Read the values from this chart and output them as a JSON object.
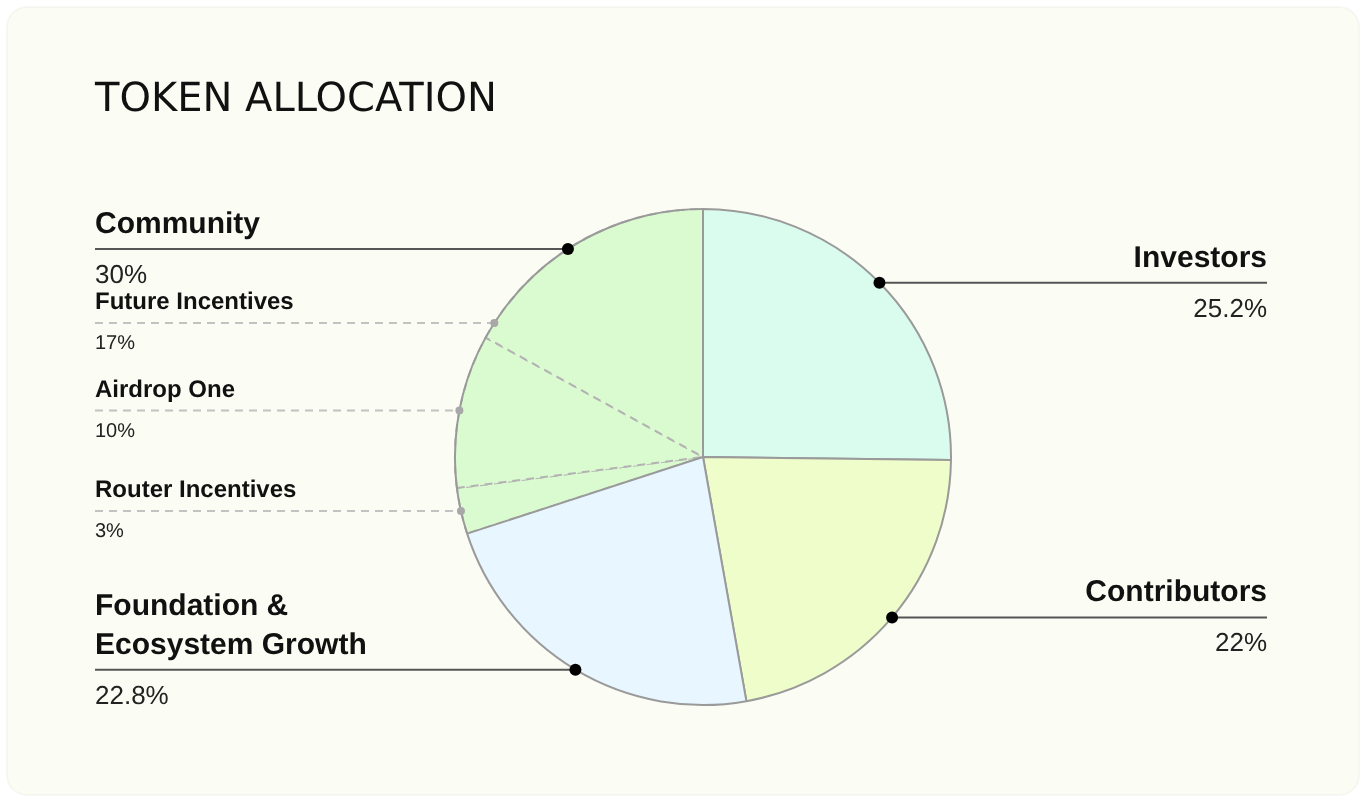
{
  "chart_data": {
    "type": "pie",
    "title": "TOKEN ALLOCATION",
    "categories": [
      "Investors",
      "Contributors",
      "Foundation & Ecosystem Growth",
      "Router Incentives",
      "Airdrop One",
      "Future Incentives"
    ],
    "values": [
      25.2,
      22,
      22.8,
      3,
      10,
      17
    ],
    "colors": [
      "#dafcee",
      "#eefdc9",
      "#e8f7ff",
      "#dafbcf",
      "#dafbcf",
      "#dafbcf"
    ],
    "value_labels": [
      "25.2%",
      "22%",
      "22.8%",
      "3%",
      "10%",
      "17%"
    ],
    "annotations": [
      "Community",
      "30%"
    ]
  }
}
